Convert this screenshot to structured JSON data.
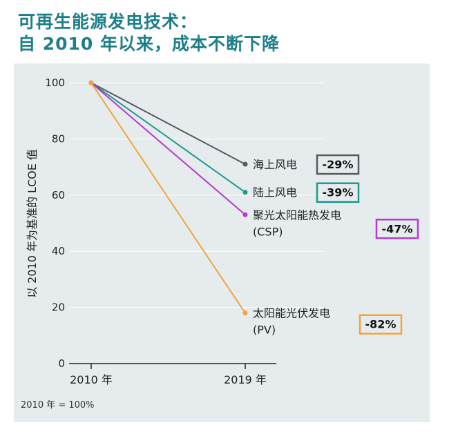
{
  "title_line1": "可再生能源发电技术：",
  "title_line2": "自  2010  年以来，成本不断下降",
  "footnote": "2010 年 = 100%",
  "chart_data": {
    "type": "line",
    "ylabel": "以 2010 年为基准的 LCOE 值",
    "ylim": [
      0,
      100
    ],
    "yticks": [
      "0",
      "20",
      "40",
      "60",
      "80",
      "100"
    ],
    "x": [
      "2010 年",
      "2019 年"
    ],
    "grid": true,
    "series": [
      {
        "name": "海上风电",
        "name2": "",
        "values": [
          100,
          71
        ],
        "change": "-29%",
        "color": "#555a5e"
      },
      {
        "name": "陆上风电",
        "name2": "",
        "values": [
          100,
          61
        ],
        "change": "-39%",
        "color": "#1c9a8c"
      },
      {
        "name": "聚光太阳能热发电",
        "name2": "(CSP)",
        "values": [
          100,
          53
        ],
        "change": "-47%",
        "color": "#b23ccc"
      },
      {
        "name": "太阳能光伏发电",
        "name2": "(PV)",
        "values": [
          100,
          18
        ],
        "change": "-82%",
        "color": "#f2a53a"
      }
    ]
  }
}
